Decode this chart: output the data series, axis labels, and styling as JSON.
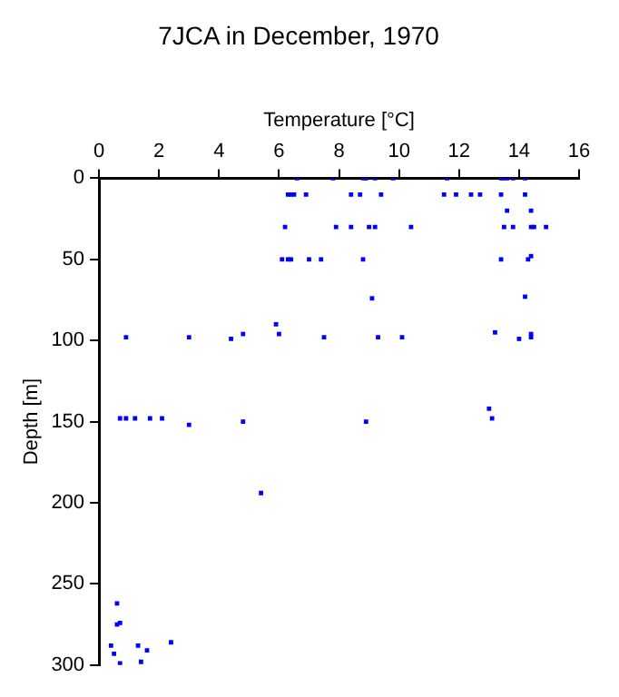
{
  "chart_data": {
    "type": "scatter",
    "title": "7JCA in December, 1970",
    "xlabel": "Temperature [°C]",
    "ylabel": "Depth [m]",
    "xlim": [
      0,
      16
    ],
    "xticks": [
      0,
      2,
      4,
      6,
      8,
      10,
      12,
      14,
      16
    ],
    "ylim": [
      300,
      0
    ],
    "yticks": [
      0,
      50,
      100,
      150,
      200,
      250,
      300
    ],
    "grid": false,
    "legend": false,
    "marker": "square",
    "series": [
      {
        "color": "#0000ff",
        "x": [
          6.6,
          7.8,
          8.8,
          8.9,
          9.2,
          9.8,
          11.6,
          13.4,
          13.5,
          13.6,
          13.8,
          14.2,
          6.3,
          6.4,
          6.5,
          6.9,
          8.4,
          8.7,
          9.4,
          11.5,
          11.9,
          12.4,
          12.7,
          13.4,
          14.2,
          13.6,
          14.4,
          6.2,
          7.9,
          8.4,
          9.0,
          9.2,
          10.4,
          13.5,
          13.8,
          14.4,
          14.5,
          14.9,
          6.1,
          6.3,
          6.4,
          7.0,
          7.4,
          8.8,
          13.4,
          14.3,
          14.4,
          9.1,
          14.2,
          5.9,
          4.8,
          6.0,
          13.2,
          14.4,
          0.9,
          3.0,
          4.4,
          7.5,
          9.3,
          10.1,
          14.0,
          14.4,
          0.7,
          0.9,
          1.2,
          1.7,
          2.1,
          3.0,
          4.8,
          8.9,
          13.0,
          13.1,
          5.4,
          0.6,
          0.6,
          0.7,
          0.4,
          0.5,
          0.7,
          1.3,
          1.6,
          1.4,
          2.4
        ],
        "values": [
          0,
          0,
          0,
          0,
          0,
          0,
          0,
          0,
          0,
          0,
          0,
          0,
          10,
          10,
          10,
          10,
          10,
          10,
          10,
          10,
          10,
          10,
          10,
          10,
          10,
          20,
          20,
          30,
          30,
          30,
          30,
          30,
          30,
          30,
          30,
          30,
          30,
          30,
          50,
          50,
          50,
          50,
          50,
          50,
          50,
          50,
          48,
          74,
          73,
          90,
          96,
          96,
          95,
          96,
          98,
          98,
          99,
          98,
          98,
          98,
          99,
          98,
          148,
          148,
          148,
          148,
          148,
          152,
          150,
          150,
          142,
          148,
          194,
          262,
          275,
          274,
          288,
          293,
          299,
          288,
          291,
          298,
          286
        ]
      }
    ]
  }
}
